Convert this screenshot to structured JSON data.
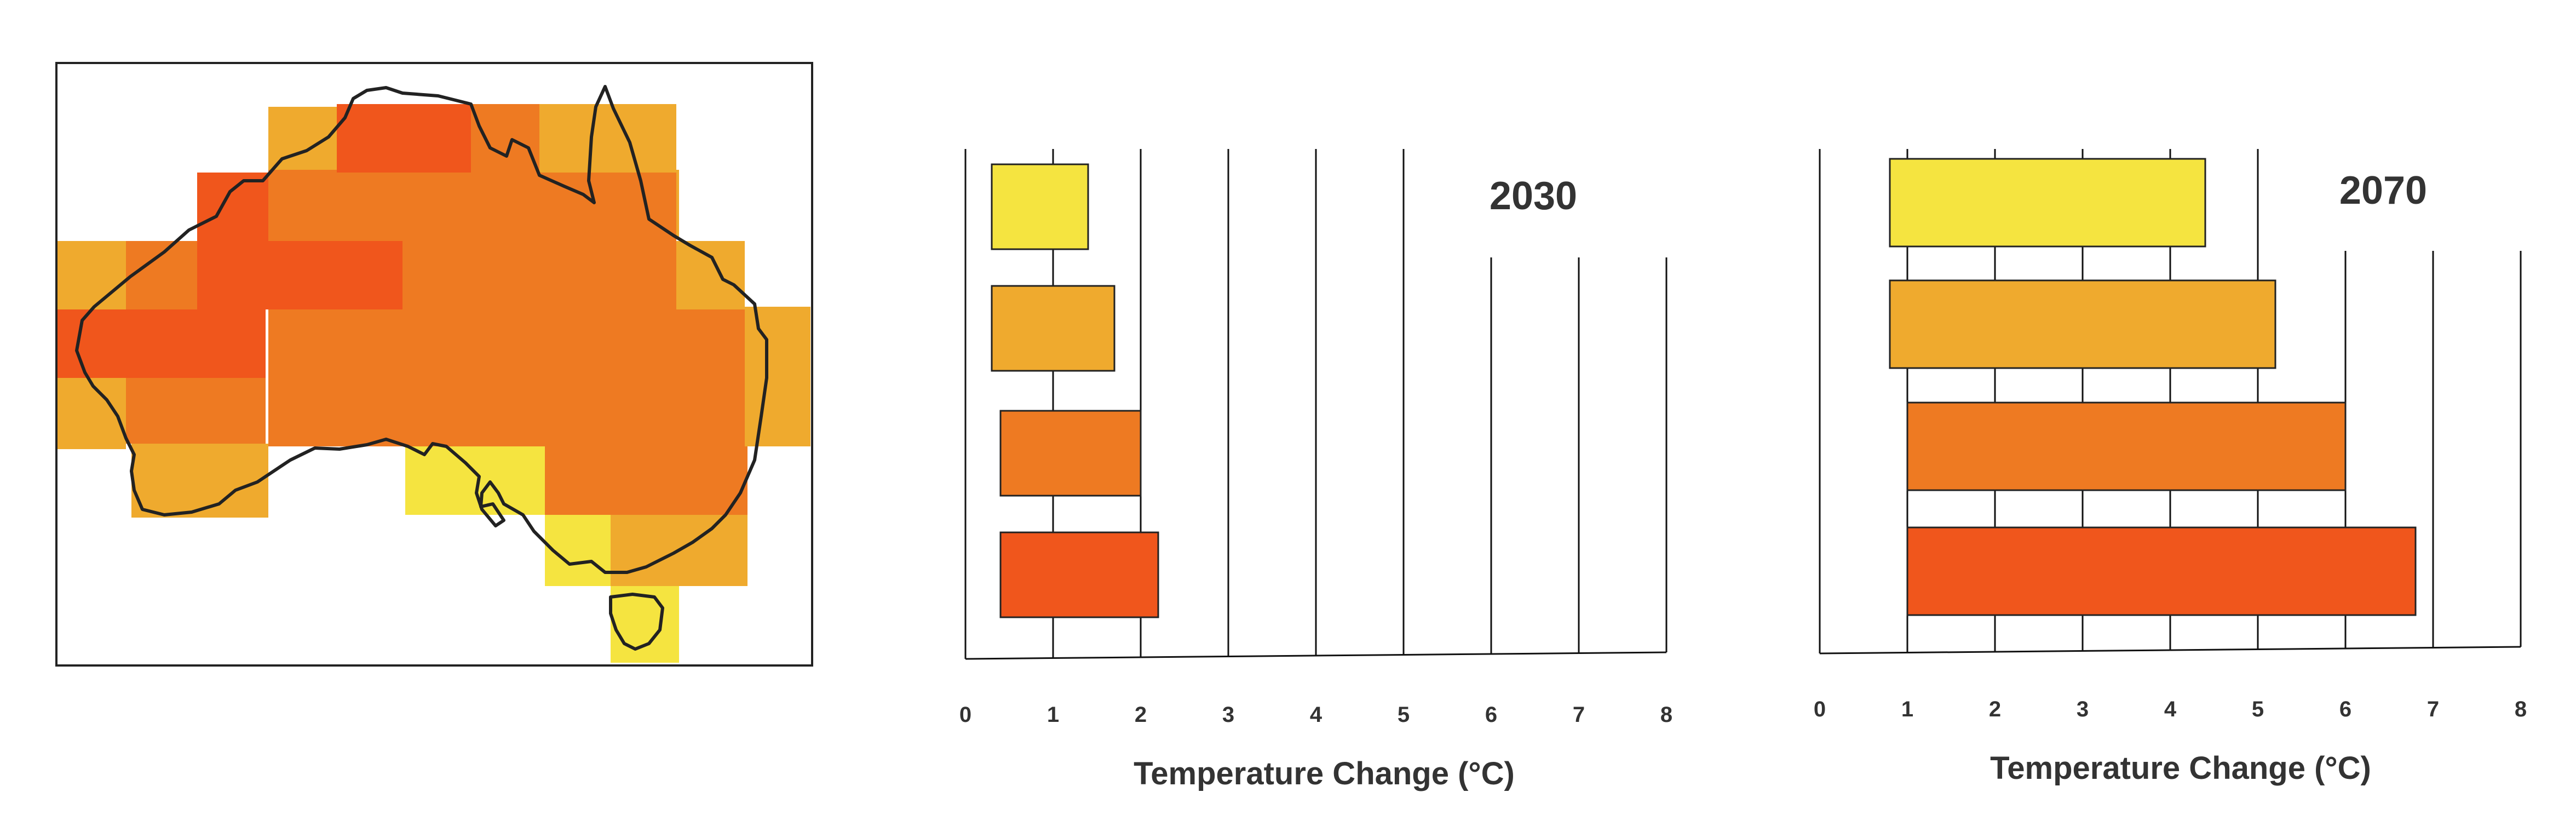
{
  "colors": {
    "band_1": "#F5E440",
    "band_2": "#EFAA2E",
    "band_3": "#EE7A22",
    "band_4": "#F0561C",
    "outline": "#222222",
    "grid": "#111111",
    "text": "#333333"
  },
  "map": {
    "region": "Australia",
    "legend_colors": [
      "band_1",
      "band_2",
      "band_3",
      "band_4"
    ]
  },
  "chart_data": [
    {
      "type": "bar",
      "orientation": "horizontal",
      "title": "2030",
      "xlabel": "Temperature Change (°C)",
      "xlim": [
        0,
        8
      ],
      "x_ticks": [
        "0",
        "1",
        "2",
        "3",
        "4",
        "5",
        "6",
        "7",
        "8"
      ],
      "grid": true,
      "ranges": [
        {
          "color": "band_1",
          "low": 0.3,
          "high": 1.4
        },
        {
          "color": "band_2",
          "low": 0.3,
          "high": 1.7
        },
        {
          "color": "band_3",
          "low": 0.4,
          "high": 2.0
        },
        {
          "color": "band_4",
          "low": 0.4,
          "high": 2.2
        }
      ]
    },
    {
      "type": "bar",
      "orientation": "horizontal",
      "title": "2070",
      "xlabel": "Temperature Change (°C)",
      "xlim": [
        0,
        8
      ],
      "x_ticks": [
        "0",
        "1",
        "2",
        "3",
        "4",
        "5",
        "6",
        "7",
        "8"
      ],
      "grid": true,
      "ranges": [
        {
          "color": "band_1",
          "low": 0.8,
          "high": 4.4
        },
        {
          "color": "band_2",
          "low": 0.8,
          "high": 5.2
        },
        {
          "color": "band_3",
          "low": 1.0,
          "high": 6.0
        },
        {
          "color": "band_4",
          "low": 1.0,
          "high": 6.8
        }
      ]
    }
  ]
}
